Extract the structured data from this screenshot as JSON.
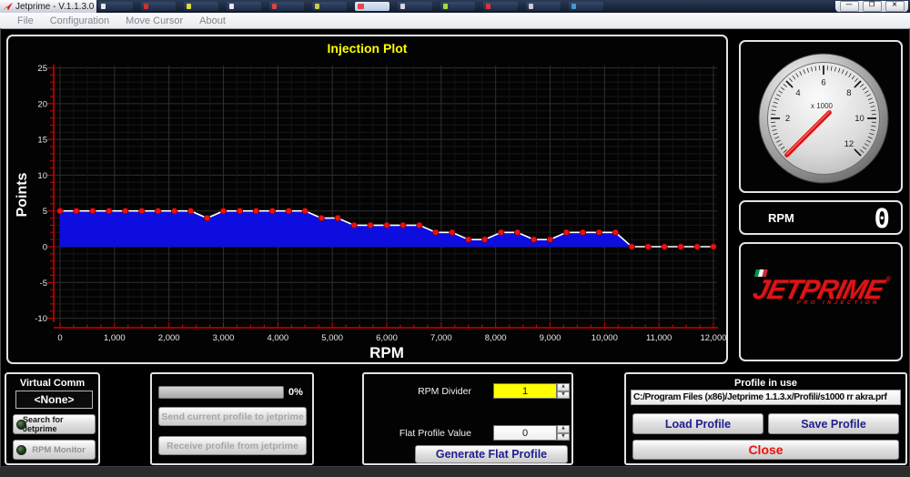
{
  "window": {
    "title": "Jetprime - V.1.1.3.0",
    "minimize_glyph": "—",
    "restore_glyph": "❐",
    "close_glyph": "✕"
  },
  "menu": {
    "items": [
      "File",
      "Configuration",
      "Move Cursor",
      "About"
    ]
  },
  "chart_data": {
    "type": "area",
    "title": "Injection Plot",
    "xlabel": "RPM",
    "ylabel": "Points",
    "xlim": [
      0,
      12000
    ],
    "ylim": [
      -10,
      25
    ],
    "y_ticks": [
      25,
      20,
      15,
      10,
      5,
      0,
      -5,
      -10
    ],
    "x_tick_interval": 1000,
    "x_minor_tick": 250,
    "grid": true,
    "x": [
      0,
      300,
      600,
      900,
      1200,
      1500,
      1800,
      2100,
      2400,
      2700,
      3000,
      3300,
      3600,
      3900,
      4200,
      4500,
      4800,
      5100,
      5400,
      5700,
      6000,
      6300,
      6600,
      6900,
      7200,
      7500,
      7800,
      8100,
      8400,
      8700,
      9000,
      9300,
      9600,
      9900,
      10200,
      10500,
      10800,
      11100,
      11400,
      11700,
      12000
    ],
    "values": [
      5,
      5,
      5,
      5,
      5,
      5,
      5,
      5,
      5,
      4,
      5,
      5,
      5,
      5,
      5,
      5,
      4,
      4,
      3,
      3,
      3,
      3,
      3,
      2,
      2,
      1,
      1,
      2,
      2,
      1,
      1,
      2,
      2,
      2,
      2,
      0,
      0,
      0,
      0,
      0,
      0
    ],
    "colors": {
      "fill": "#0d0de0",
      "line": "#ffffff",
      "marker": "#ee1111",
      "marker_edge": "#7a0000",
      "axis": "#cc0000",
      "grid_major": "#2f2f2f",
      "grid_minor": "#181818",
      "title": "#ffff00",
      "tick_text": "#e8e8e8"
    }
  },
  "gauge": {
    "unit_label": "x 1000",
    "scale_labels": [
      "2",
      "4",
      "6",
      "8",
      "10",
      "12"
    ],
    "scale_min": 0,
    "scale_max": 12,
    "needle_value": 0,
    "needle_color": "#e01212"
  },
  "rpm_display": {
    "label": "RPM",
    "value": "0"
  },
  "logo": {
    "jet": "JET",
    "prime": "PRIME",
    "reg": "®",
    "sub": "PRO INJECTION"
  },
  "virtual_comm": {
    "title": "Virtual Comm",
    "port_value": "<None>",
    "search_button": "Search for Jetprime",
    "monitor_button": "RPM Monitor"
  },
  "transfer": {
    "progress_percent": "0%",
    "send_button": "Send current profile to jetprime",
    "receive_button": "Receive profile from jetprime"
  },
  "flat_profile": {
    "rpm_divider_label": "RPM Divider",
    "rpm_divider_value": "1",
    "flat_value_label": "Flat Profile Value",
    "flat_value": "0",
    "generate_button": "Generate Flat Profile"
  },
  "profile": {
    "title": "Profile in use",
    "path": "C:/Program Files (x86)/Jetprime 1.1.3.x/Profili/s1000 rr akra.prf",
    "load_button": "Load Profile",
    "save_button": "Save Profile",
    "close_button": "Close"
  }
}
